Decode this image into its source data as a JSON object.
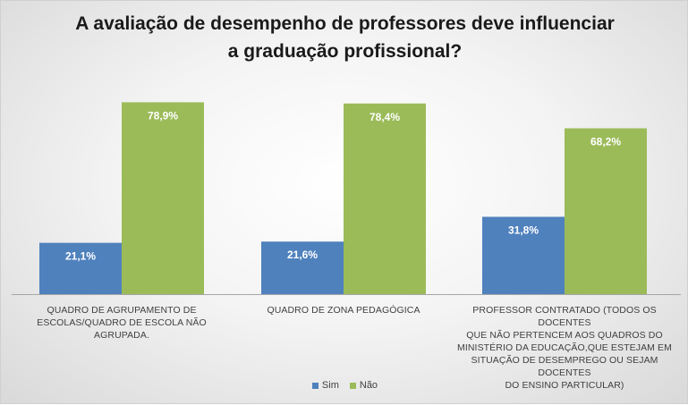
{
  "chart_data": {
    "type": "bar",
    "title_lines": [
      "A avaliação de desempenho de professores deve influenciar",
      "a graduação profissional?"
    ],
    "categories": [
      [
        "QUADRO DE AGRUPAMENTO DE",
        "ESCOLAS/QUADRO DE ESCOLA NÃO AGRUPADA."
      ],
      [
        "QUADRO DE ZONA PEDAGÓGICA"
      ],
      [
        "PROFESSOR CONTRATADO (TODOS OS DOCENTES",
        "QUE NÃO PERTENCEM AOS QUADROS DO",
        "MINISTÉRIO DA EDUCAÇÃO,QUE ESTEJAM EM",
        "SITUAÇÃO DE DESEMPREGO OU SEJAM DOCENTES",
        "DO ENSINO PARTICULAR)"
      ]
    ],
    "series": [
      {
        "name": "Sim",
        "color": "#4f81bd",
        "values": [
          21.1,
          21.6,
          31.8
        ],
        "labels": [
          "21,1%",
          "21,6%",
          "31,8%"
        ]
      },
      {
        "name": "Não",
        "color": "#9bbb59",
        "values": [
          78.9,
          78.4,
          68.2
        ],
        "labels": [
          "78,9%",
          "78,4%",
          "68,2%"
        ]
      }
    ],
    "ylim": [
      0,
      100
    ],
    "grid": false,
    "legend_position": "bottom",
    "data_labels_color": "#ffffff"
  }
}
